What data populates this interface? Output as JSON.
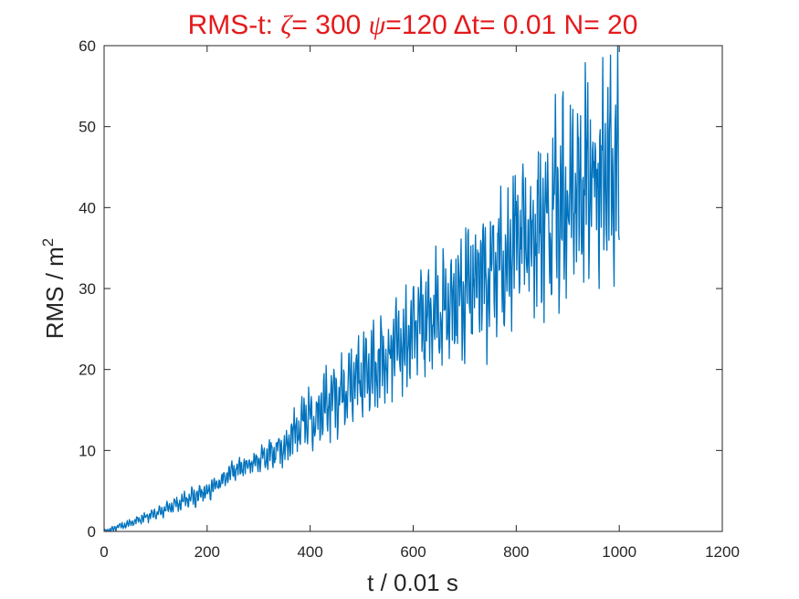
{
  "chart_data": {
    "type": "line",
    "title": {
      "prefix": "RMS-t:  ",
      "sym1": "ζ",
      "part1": "= 300 ",
      "sym2": "ψ",
      "part2": "=120 ",
      "sym3": "Δ",
      "part3": "t= 0.01 N= 20",
      "color": "#e31a1c"
    },
    "xlabel": "t / 0.01 s",
    "ylabel_main": "RMS / m",
    "ylabel_sup": "2",
    "xlim": [
      0,
      1200
    ],
    "ylim": [
      0,
      60
    ],
    "xticks": [
      "0",
      "200",
      "400",
      "600",
      "800",
      "1000",
      "1200"
    ],
    "yticks": [
      "0",
      "10",
      "20",
      "30",
      "40",
      "50",
      "60"
    ],
    "series": [
      {
        "color": "#0072bd",
        "x_start": 0,
        "x_end": 1000,
        "x_step": 1,
        "trend": [
          [
            0,
            0
          ],
          [
            50,
            1
          ],
          [
            100,
            2.2
          ],
          [
            150,
            3.6
          ],
          [
            200,
            5
          ],
          [
            250,
            7.5
          ],
          [
            300,
            8.8
          ],
          [
            350,
            10.5
          ],
          [
            380,
            13.5
          ],
          [
            400,
            14.2
          ],
          [
            450,
            16.5
          ],
          [
            500,
            19
          ],
          [
            550,
            21.5
          ],
          [
            600,
            24.5
          ],
          [
            650,
            26.5
          ],
          [
            700,
            29.5
          ],
          [
            750,
            32
          ],
          [
            800,
            35
          ],
          [
            850,
            38
          ],
          [
            900,
            41
          ],
          [
            950,
            44
          ],
          [
            1000,
            46
          ]
        ],
        "amplitude": [
          [
            0,
            0.3
          ],
          [
            100,
            0.8
          ],
          [
            200,
            1.3
          ],
          [
            300,
            1.5
          ],
          [
            380,
            3.5
          ],
          [
            450,
            5
          ],
          [
            550,
            6
          ],
          [
            650,
            7.5
          ],
          [
            750,
            9
          ],
          [
            850,
            11
          ],
          [
            950,
            13
          ],
          [
            1000,
            14
          ]
        ],
        "end_value": 36
      }
    ]
  }
}
